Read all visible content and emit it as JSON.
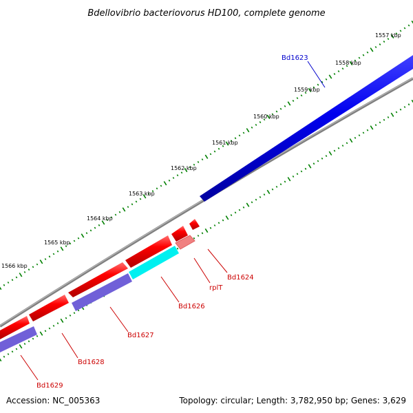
{
  "title": "Bdellovibrio bacteriovorus HD100, complete genome",
  "footer": {
    "accession": "Accession: NC_005363",
    "stats": "Topology: circular; Length: 3,782,950 bp; Genes: 3,629"
  },
  "colors": {
    "forward_cds": "#ff0000",
    "reverse_cds": "#0000ff",
    "rna": "#ff8080",
    "cyan_cds": "#00ffff",
    "purple_cds": "#7060d8",
    "backbone": "#808080",
    "ticks": "#008000",
    "label_red": "#cc0000",
    "label_blue": "#0000cc"
  },
  "scale_labels": [
    "1557 kbp",
    "1558 kbp",
    "1559 kbp",
    "1560 kbp",
    "1561 kbp",
    "1562 kbp",
    "1563 kbp",
    "1564 kbp",
    "1565 kbp",
    "1566 kbp"
  ],
  "genes": [
    {
      "name": "Bd1623",
      "strand": "reverse"
    },
    {
      "name": "Bd1624",
      "strand": "forward"
    },
    {
      "name": "rplT",
      "strand": "forward"
    },
    {
      "name": "Bd1626",
      "strand": "forward"
    },
    {
      "name": "Bd1627",
      "strand": "forward"
    },
    {
      "name": "Bd1628",
      "strand": "forward"
    },
    {
      "name": "Bd1629",
      "strand": "forward"
    }
  ]
}
